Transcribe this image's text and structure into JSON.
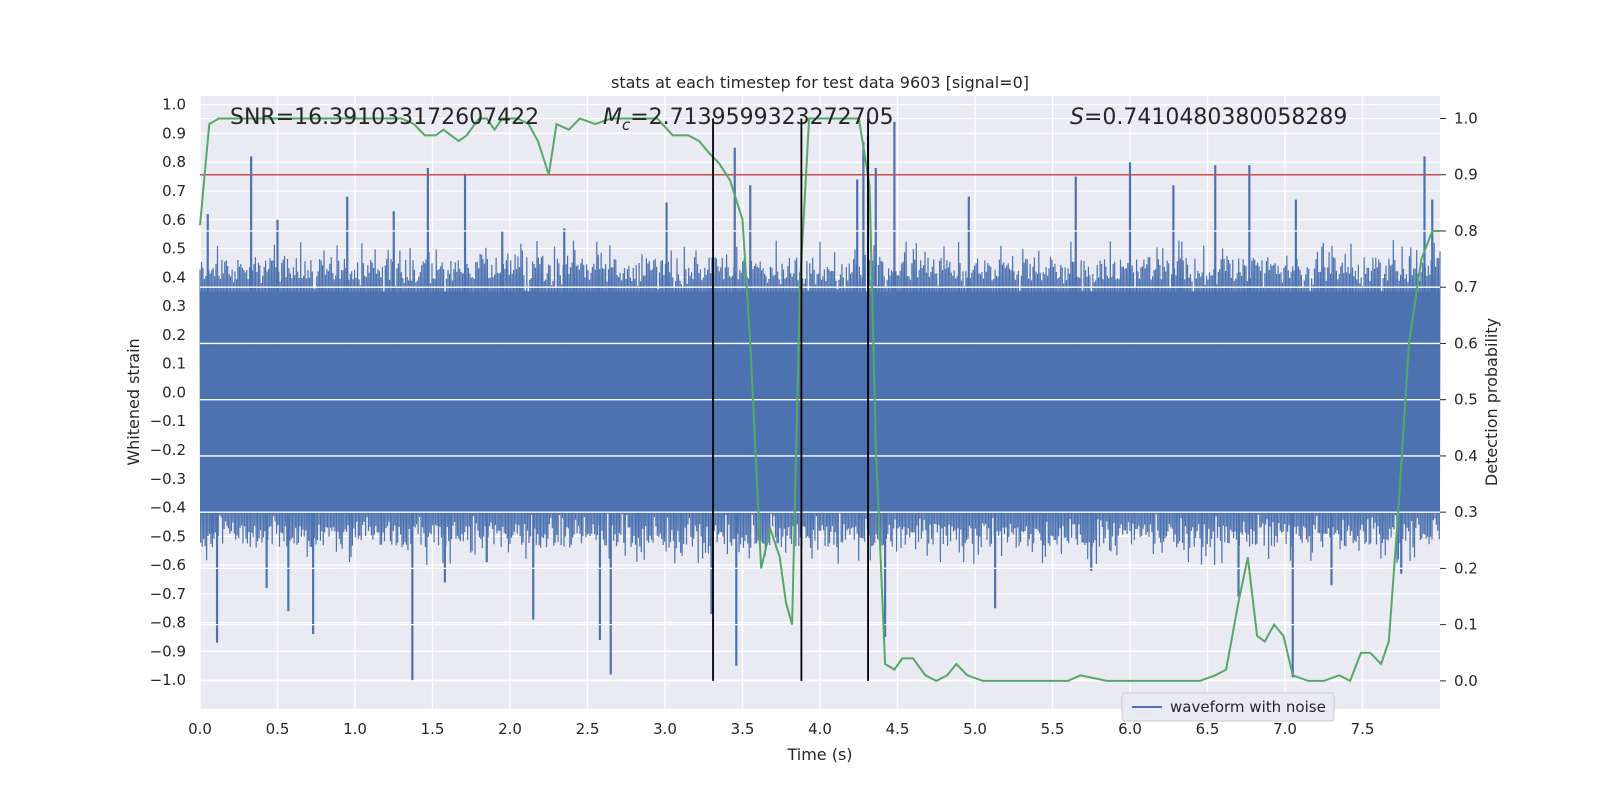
{
  "chart_data": {
    "type": "line",
    "title": "stats at each timestep for test data 9603 [signal=0]",
    "xlabel": "Time (s)",
    "ylabel": "Whitened strain",
    "y2label": "Detection probability",
    "xlim": [
      0.0,
      8.0
    ],
    "ylim": [
      -1.1,
      1.03
    ],
    "y2lim": [
      -0.05,
      1.04
    ],
    "x_ticks": [
      0.0,
      0.5,
      1.0,
      1.5,
      2.0,
      2.5,
      3.0,
      3.5,
      4.0,
      4.5,
      5.0,
      5.5,
      6.0,
      6.5,
      7.0,
      7.5
    ],
    "x_tick_labels": [
      "0.0",
      "0.5",
      "1.0",
      "1.5",
      "2.0",
      "2.5",
      "3.0",
      "3.5",
      "4.0",
      "4.5",
      "5.0",
      "5.5",
      "6.0",
      "6.5",
      "7.0",
      "7.5"
    ],
    "y_ticks": [
      1.0,
      0.9,
      0.8,
      0.7,
      0.6,
      0.5,
      0.4,
      0.3,
      0.2,
      0.1,
      0.0,
      -0.1,
      -0.2,
      -0.3,
      -0.4,
      -0.5,
      -0.6,
      -0.7,
      -0.8,
      -0.9,
      -1.0
    ],
    "y_tick_labels": [
      "1.0",
      "0.9",
      "0.8",
      "0.7",
      "0.6",
      "0.5",
      "0.4",
      "0.3",
      "0.2",
      "0.1",
      "0.0",
      "−0.1",
      "−0.2",
      "−0.3",
      "−0.4",
      "−0.5",
      "−0.6",
      "−0.7",
      "−0.8",
      "−0.9",
      "−1.0"
    ],
    "y2_ticks": [
      1.0,
      0.9,
      0.8,
      0.7,
      0.6,
      0.5,
      0.4,
      0.3,
      0.2,
      0.1,
      0.0
    ],
    "y2_tick_labels": [
      "1.0",
      "0.9",
      "0.8",
      "0.7",
      "0.6",
      "0.5",
      "0.4",
      "0.3",
      "0.2",
      "0.1",
      "0.0"
    ],
    "annotations": {
      "snr": "SNR=16.391033172607422",
      "mc_symbol": "M",
      "mc_subscript": "c",
      "mc_value": "=2.7139599323272705",
      "s_symbol": "S",
      "s_value": "=0.7410480380058289"
    },
    "threshold": {
      "value": 0.9,
      "axis": "y2",
      "color": "#c44e52"
    },
    "vlines": [
      {
        "x": 3.31,
        "y2_top": 1.0
      },
      {
        "x": 3.88,
        "y2_top": 1.0
      },
      {
        "x": 4.31,
        "y2_top": 1.0
      }
    ],
    "series": [
      {
        "name": "waveform with noise",
        "axis": "y",
        "color": "#4c72b0",
        "kind": "dense-noise",
        "x_range": [
          0.0,
          8.0
        ],
        "core_band": [
          -0.42,
          0.35
        ],
        "spikes": [
          {
            "x": 0.05,
            "y": 0.62
          },
          {
            "x": 0.08,
            "y": -0.49
          },
          {
            "x": 0.11,
            "y": -0.87
          },
          {
            "x": 0.33,
            "y": 0.82
          },
          {
            "x": 0.43,
            "y": -0.68
          },
          {
            "x": 0.5,
            "y": 0.6
          },
          {
            "x": 0.57,
            "y": -0.76
          },
          {
            "x": 0.73,
            "y": -0.84
          },
          {
            "x": 0.95,
            "y": 0.68
          },
          {
            "x": 1.25,
            "y": 0.63
          },
          {
            "x": 1.37,
            "y": -1.0
          },
          {
            "x": 1.47,
            "y": 0.78
          },
          {
            "x": 1.58,
            "y": -0.66
          },
          {
            "x": 1.71,
            "y": 0.76
          },
          {
            "x": 1.85,
            "y": -0.59
          },
          {
            "x": 1.95,
            "y": 0.56
          },
          {
            "x": 2.15,
            "y": -0.79
          },
          {
            "x": 2.35,
            "y": 0.57
          },
          {
            "x": 2.58,
            "y": -0.86
          },
          {
            "x": 2.65,
            "y": -0.98
          },
          {
            "x": 3.01,
            "y": 0.66
          },
          {
            "x": 3.3,
            "y": -0.77
          },
          {
            "x": 3.45,
            "y": 0.85
          },
          {
            "x": 3.46,
            "y": -0.95
          },
          {
            "x": 3.55,
            "y": 0.72
          },
          {
            "x": 4.24,
            "y": 0.74
          },
          {
            "x": 4.28,
            "y": 0.87
          },
          {
            "x": 4.31,
            "y": 0.89
          },
          {
            "x": 4.36,
            "y": 0.78
          },
          {
            "x": 4.42,
            "y": -0.85
          },
          {
            "x": 4.48,
            "y": 0.94
          },
          {
            "x": 4.96,
            "y": 0.68
          },
          {
            "x": 5.13,
            "y": -0.75
          },
          {
            "x": 5.65,
            "y": 0.75
          },
          {
            "x": 5.75,
            "y": -0.62
          },
          {
            "x": 6.0,
            "y": 0.8
          },
          {
            "x": 6.28,
            "y": 0.72
          },
          {
            "x": 6.55,
            "y": 0.79
          },
          {
            "x": 6.7,
            "y": -0.71
          },
          {
            "x": 6.77,
            "y": 0.79
          },
          {
            "x": 7.05,
            "y": -0.99
          },
          {
            "x": 7.07,
            "y": 0.67
          },
          {
            "x": 7.3,
            "y": -0.67
          },
          {
            "x": 7.75,
            "y": -0.63
          },
          {
            "x": 7.9,
            "y": 0.82
          },
          {
            "x": 7.95,
            "y": 0.67
          }
        ]
      },
      {
        "name": "detection probability",
        "axis": "y2",
        "color": "#55a868",
        "kind": "line",
        "x": [
          0.0,
          0.06,
          0.12,
          0.2,
          0.35,
          0.6,
          0.9,
          1.2,
          1.3,
          1.38,
          1.45,
          1.52,
          1.57,
          1.62,
          1.67,
          1.72,
          1.8,
          1.85,
          1.9,
          1.95,
          2.0,
          2.05,
          2.12,
          2.18,
          2.25,
          2.3,
          2.38,
          2.45,
          2.55,
          2.65,
          2.8,
          2.95,
          3.05,
          3.15,
          3.22,
          3.28,
          3.35,
          3.42,
          3.5,
          3.55,
          3.62,
          3.68,
          3.74,
          3.78,
          3.82,
          3.87,
          3.93,
          3.98,
          4.05,
          4.15,
          4.25,
          4.28,
          4.32,
          4.36,
          4.42,
          4.48,
          4.53,
          4.6,
          4.68,
          4.75,
          4.82,
          4.88,
          4.95,
          5.05,
          5.25,
          5.45,
          5.6,
          5.68,
          5.85,
          6.05,
          6.2,
          6.35,
          6.45,
          6.55,
          6.62,
          6.7,
          6.76,
          6.82,
          6.87,
          6.93,
          6.99,
          7.05,
          7.15,
          7.25,
          7.35,
          7.42,
          7.49,
          7.55,
          7.62,
          7.67,
          7.73,
          7.8,
          7.88,
          7.95,
          8.0
        ],
        "y": [
          0.81,
          0.99,
          1.0,
          1.0,
          1.0,
          1.0,
          1.0,
          1.0,
          1.0,
          0.99,
          0.97,
          0.97,
          0.98,
          0.97,
          0.96,
          0.97,
          1.0,
          1.0,
          0.98,
          1.0,
          1.0,
          1.0,
          0.99,
          0.96,
          0.9,
          0.99,
          0.98,
          1.0,
          0.99,
          1.0,
          1.0,
          1.0,
          0.97,
          0.97,
          0.96,
          0.94,
          0.92,
          0.89,
          0.82,
          0.6,
          0.2,
          0.27,
          0.22,
          0.14,
          0.1,
          0.7,
          1.0,
          1.0,
          1.0,
          1.0,
          1.0,
          0.95,
          0.88,
          0.42,
          0.03,
          0.02,
          0.04,
          0.04,
          0.01,
          0.0,
          0.01,
          0.03,
          0.01,
          0.0,
          0.0,
          0.0,
          0.0,
          0.01,
          0.0,
          0.0,
          0.0,
          0.0,
          0.0,
          0.01,
          0.02,
          0.14,
          0.22,
          0.08,
          0.07,
          0.1,
          0.08,
          0.01,
          0.0,
          0.0,
          0.01,
          0.0,
          0.05,
          0.05,
          0.03,
          0.07,
          0.3,
          0.6,
          0.75,
          0.8,
          0.8
        ]
      }
    ],
    "legend": {
      "position": "bottom-right",
      "entries": [
        "waveform with noise"
      ]
    }
  }
}
